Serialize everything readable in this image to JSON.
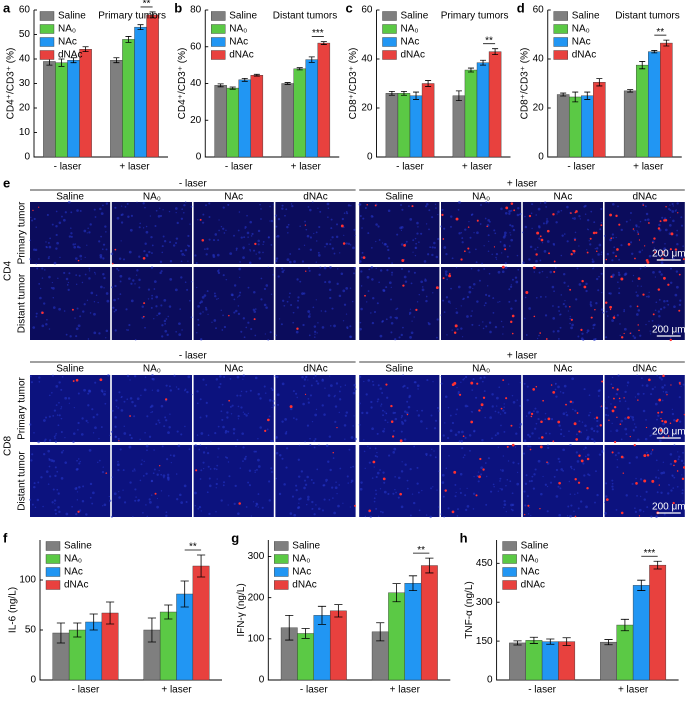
{
  "chart_data": [
    {
      "type": "bar",
      "panel": "a",
      "title": "Primary tumors",
      "ylabel": "CD4⁺/CD3⁺ (%)",
      "categories": [
        "- laser",
        "+ laser"
      ],
      "ylim": [
        0,
        60
      ],
      "yticks": [
        0,
        10,
        20,
        30,
        40,
        50,
        60
      ],
      "significance": "**",
      "series": [
        {
          "name": "Saline",
          "color": "#7f7f7f",
          "values": [
            39,
            39.5
          ],
          "errors": [
            1.5,
            1
          ]
        },
        {
          "name": "NA₀",
          "color": "#5bc945",
          "values": [
            38.5,
            48
          ],
          "errors": [
            1.5,
            1.2
          ]
        },
        {
          "name": "NAc",
          "color": "#2196f3",
          "values": [
            39.5,
            53
          ],
          "errors": [
            1,
            1
          ]
        },
        {
          "name": "dNAc",
          "color": "#e8413e",
          "values": [
            44,
            58
          ],
          "errors": [
            1,
            1.2
          ]
        }
      ]
    },
    {
      "type": "bar",
      "panel": "b",
      "title": "Distant tumors",
      "ylabel": "CD4⁺/CD3⁺ (%)",
      "categories": [
        "- laser",
        "+ laser"
      ],
      "ylim": [
        0,
        80
      ],
      "yticks": [
        0,
        20,
        40,
        60,
        80
      ],
      "significance": "***",
      "series": [
        {
          "name": "Saline",
          "color": "#7f7f7f",
          "values": [
            39,
            40
          ],
          "errors": [
            0.8,
            0.5
          ]
        },
        {
          "name": "NA₀",
          "color": "#5bc945",
          "values": [
            37.5,
            48
          ],
          "errors": [
            0.6,
            0.6
          ]
        },
        {
          "name": "NAc",
          "color": "#2196f3",
          "values": [
            42,
            53
          ],
          "errors": [
            0.8,
            1.5
          ]
        },
        {
          "name": "dNAc",
          "color": "#e8413e",
          "values": [
            44.5,
            62
          ],
          "errors": [
            0.5,
            0.8
          ]
        }
      ]
    },
    {
      "type": "bar",
      "panel": "c",
      "title": "Primary tumors",
      "ylabel": "CD8⁺/CD3⁺ (%)",
      "categories": [
        "- laser",
        "+ laser"
      ],
      "ylim": [
        0,
        60
      ],
      "yticks": [
        0,
        20,
        40,
        60
      ],
      "significance": "**",
      "series": [
        {
          "name": "Saline",
          "color": "#7f7f7f",
          "values": [
            26,
            25
          ],
          "errors": [
            0.8,
            2
          ]
        },
        {
          "name": "NA₀",
          "color": "#5bc945",
          "values": [
            26,
            35.5
          ],
          "errors": [
            0.8,
            0.8
          ]
        },
        {
          "name": "NAc",
          "color": "#2196f3",
          "values": [
            25,
            38.5
          ],
          "errors": [
            1.5,
            1
          ]
        },
        {
          "name": "dNAc",
          "color": "#e8413e",
          "values": [
            30,
            43
          ],
          "errors": [
            1.2,
            1.2
          ]
        }
      ]
    },
    {
      "type": "bar",
      "panel": "d",
      "title": "Distant tumors",
      "ylabel": "CD8⁺/CD3⁺ (%)",
      "categories": [
        "- laser",
        "+ laser"
      ],
      "ylim": [
        0,
        60
      ],
      "yticks": [
        0,
        20,
        40,
        60
      ],
      "significance": "**",
      "series": [
        {
          "name": "Saline",
          "color": "#7f7f7f",
          "values": [
            25.5,
            27
          ],
          "errors": [
            0.6,
            0.5
          ]
        },
        {
          "name": "NA₀",
          "color": "#5bc945",
          "values": [
            24.5,
            37.5
          ],
          "errors": [
            2,
            1.5
          ]
        },
        {
          "name": "NAc",
          "color": "#2196f3",
          "values": [
            25,
            43
          ],
          "errors": [
            1.5,
            0.5
          ]
        },
        {
          "name": "dNAc",
          "color": "#e8413e",
          "values": [
            30.5,
            46.5
          ],
          "errors": [
            1.5,
            1.2
          ]
        }
      ]
    },
    {
      "type": "bar",
      "panel": "f",
      "ylabel": "IL-6 (ng/L)",
      "categories": [
        "- laser",
        "+ laser"
      ],
      "ylim": [
        0,
        140
      ],
      "yticks": [
        0,
        50,
        100
      ],
      "significance": "**",
      "series": [
        {
          "name": "Saline",
          "color": "#7f7f7f",
          "values": [
            47,
            50
          ],
          "errors": [
            10,
            12
          ]
        },
        {
          "name": "NA₀",
          "color": "#5bc945",
          "values": [
            50,
            68
          ],
          "errors": [
            7,
            7
          ]
        },
        {
          "name": "NAc",
          "color": "#2196f3",
          "values": [
            58,
            86
          ],
          "errors": [
            8,
            13
          ]
        },
        {
          "name": "dNAc",
          "color": "#e8413e",
          "values": [
            67,
            114
          ],
          "errors": [
            11,
            11
          ]
        }
      ]
    },
    {
      "type": "bar",
      "panel": "g",
      "ylabel": "IFN-γ (ng/L)",
      "categories": [
        "- laser",
        "+ laser"
      ],
      "ylim": [
        0,
        340
      ],
      "yticks": [
        0,
        100,
        200,
        300
      ],
      "significance": "**",
      "series": [
        {
          "name": "Saline",
          "color": "#7f7f7f",
          "values": [
            127,
            117
          ],
          "errors": [
            30,
            22
          ]
        },
        {
          "name": "NA₀",
          "color": "#5bc945",
          "values": [
            113,
            212
          ],
          "errors": [
            12,
            22
          ]
        },
        {
          "name": "NAc",
          "color": "#2196f3",
          "values": [
            157,
            235
          ],
          "errors": [
            22,
            18
          ]
        },
        {
          "name": "dNAc",
          "color": "#e8413e",
          "values": [
            168,
            278
          ],
          "errors": [
            15,
            18
          ]
        }
      ]
    },
    {
      "type": "bar",
      "panel": "h",
      "ylabel": "TNF-α (ng/L)",
      "categories": [
        "- laser",
        "+ laser"
      ],
      "ylim": [
        0,
        540
      ],
      "yticks": [
        0,
        150,
        300,
        450
      ],
      "significance": "***",
      "series": [
        {
          "name": "Saline",
          "color": "#7f7f7f",
          "values": [
            143,
            146
          ],
          "errors": [
            8,
            10
          ]
        },
        {
          "name": "NA₀",
          "color": "#5bc945",
          "values": [
            153,
            212
          ],
          "errors": [
            12,
            22
          ]
        },
        {
          "name": "NAc",
          "color": "#2196f3",
          "values": [
            148,
            365
          ],
          "errors": [
            10,
            20
          ]
        },
        {
          "name": "dNAc",
          "color": "#e8413e",
          "values": [
            148,
            443
          ],
          "errors": [
            15,
            15
          ]
        }
      ]
    }
  ],
  "panel_e": {
    "panel": "e",
    "scale_bar": "200 μm",
    "blocks": [
      {
        "marker": "CD4",
        "groups": [
          "- laser",
          "+ laser"
        ],
        "columns": [
          "Saline",
          "NA₀",
          "NAc",
          "dNAc",
          "Saline",
          "NA₀",
          "NAc",
          "dNAc"
        ],
        "rows": [
          "Primary tumor",
          "Distant tumor"
        ]
      },
      {
        "marker": "CD8",
        "groups": [
          "- laser",
          "+ laser"
        ],
        "columns": [
          "Saline",
          "NA₀",
          "NAc",
          "dNAc",
          "Saline",
          "NA₀",
          "NAc",
          "dNAc"
        ],
        "rows": [
          "Primary tumor",
          "Distant tumor"
        ]
      }
    ]
  }
}
